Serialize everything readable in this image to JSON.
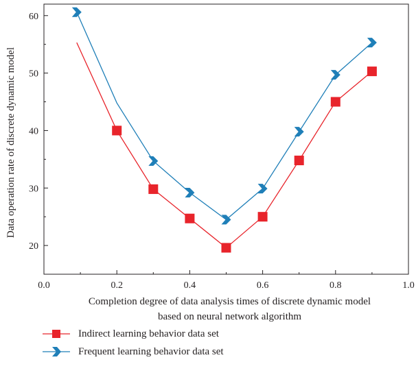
{
  "chart_data": {
    "type": "line",
    "xlabel": "Completion degree of data analysis times of discrete dynamic model based on neural network algorithm",
    "ylabel": "Data operation rate of discrete dynamic model",
    "xlim": [
      0.0,
      1.0
    ],
    "ylim": [
      15,
      62
    ],
    "x_ticks": [
      "0.0",
      "0.2",
      "0.4",
      "0.6",
      "0.8",
      "1.0"
    ],
    "y_ticks": [
      "20",
      "30",
      "40",
      "50",
      "60"
    ],
    "grid": false,
    "legend_position": "bottom-left, below plot",
    "series": [
      {
        "name": "Indirect learning behavior data set",
        "color": "#e8242b",
        "marker": "square",
        "x": [
          0.09,
          0.2,
          0.3,
          0.4,
          0.5,
          0.6,
          0.7,
          0.8,
          0.9
        ],
        "y": [
          55.3,
          40.0,
          29.8,
          24.7,
          19.6,
          25.0,
          34.8,
          45.0,
          50.3
        ],
        "marker_skip_first": true
      },
      {
        "name": "Frequent learning behavior data set",
        "color": "#1f7fb8",
        "marker": "chevron",
        "x": [
          0.09,
          0.2,
          0.3,
          0.4,
          0.5,
          0.6,
          0.7,
          0.8,
          0.9
        ],
        "y": [
          60.6,
          44.8,
          34.7,
          29.2,
          24.5,
          29.9,
          39.8,
          49.7,
          55.3
        ],
        "marker_skip_index": 1
      }
    ]
  }
}
